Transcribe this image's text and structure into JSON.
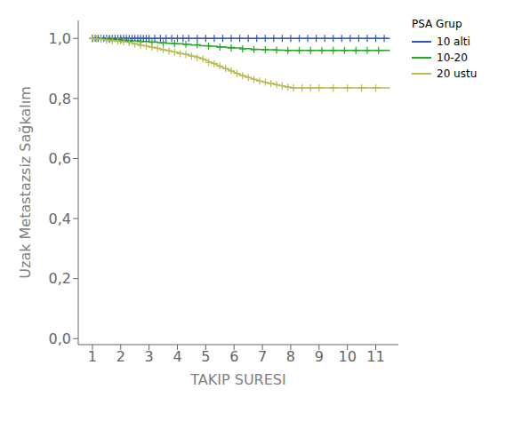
{
  "chart_data": {
    "type": "line",
    "title": "",
    "xlabel": "TAKIP SURESI",
    "ylabel": "Uzak Metastazsiz Sağkalım",
    "legend_title": "PSA Grup",
    "legend": "right",
    "grid": false,
    "xlim": [
      0.5,
      11.8
    ],
    "ylim": [
      -0.02,
      1.06
    ],
    "xticks": [
      1,
      2,
      3,
      4,
      5,
      6,
      7,
      8,
      9,
      10,
      11
    ],
    "yticks": [
      {
        "value": 0.0,
        "label": "0,0"
      },
      {
        "value": 0.2,
        "label": "0,2"
      },
      {
        "value": 0.4,
        "label": "0,4"
      },
      {
        "value": 0.6,
        "label": "0,6"
      },
      {
        "value": 0.8,
        "label": "0,8"
      },
      {
        "value": 1.0,
        "label": "1,0"
      }
    ],
    "series": [
      {
        "name": "10 alti",
        "color": "#3355bb",
        "type": "line",
        "line_style": "step",
        "x": [
          1.0,
          1.05,
          1.1,
          1.15,
          1.2,
          1.25,
          1.3,
          1.35,
          1.4,
          1.45,
          1.5,
          1.6,
          1.7,
          1.8,
          1.9,
          2.0,
          2.1,
          2.2,
          2.3,
          2.4,
          2.5,
          2.6,
          2.7,
          2.8,
          2.9,
          3.0,
          3.2,
          3.4,
          3.6,
          3.8,
          4.0,
          4.2,
          4.4,
          4.6,
          4.8,
          5.0,
          5.2,
          5.4,
          5.6,
          5.8,
          6.0,
          6.2,
          6.4,
          6.6,
          6.8,
          7.0,
          7.2,
          7.4,
          7.6,
          7.8,
          8.0,
          8.2,
          8.4,
          8.6,
          8.8,
          9.0,
          9.2,
          9.4,
          9.6,
          9.8,
          10.0,
          10.2,
          10.4,
          10.6,
          10.8,
          11.0,
          11.2,
          11.5
        ],
        "values": [
          1.0,
          1.0,
          1.0,
          1.0,
          1.0,
          1.0,
          1.0,
          1.0,
          1.0,
          1.0,
          1.0,
          1.0,
          1.0,
          1.0,
          1.0,
          1.0,
          1.0,
          1.0,
          1.0,
          1.0,
          1.0,
          1.0,
          1.0,
          1.0,
          1.0,
          1.0,
          1.0,
          1.0,
          1.0,
          1.0,
          1.0,
          1.0,
          1.0,
          1.0,
          1.0,
          1.0,
          1.0,
          1.0,
          1.0,
          1.0,
          1.0,
          1.0,
          1.0,
          1.0,
          1.0,
          1.0,
          1.0,
          1.0,
          1.0,
          1.0,
          1.0,
          1.0,
          1.0,
          1.0,
          1.0,
          1.0,
          1.0,
          1.0,
          1.0,
          1.0,
          1.0,
          1.0,
          1.0,
          1.0,
          1.0,
          1.0,
          1.0,
          1.0
        ]
      },
      {
        "color": "#3355bb",
        "type": "scatter",
        "marker": "plus",
        "x": [
          1.0,
          1.1,
          1.2,
          1.3,
          1.4,
          1.5,
          1.6,
          1.7,
          1.8,
          1.9,
          2.0,
          2.1,
          2.2,
          2.3,
          2.4,
          2.5,
          2.6,
          2.7,
          2.8,
          2.9,
          3.0,
          3.2,
          3.4,
          3.6,
          3.8,
          4.0,
          4.2,
          4.4,
          4.7,
          5.0,
          5.3,
          5.6,
          5.9,
          6.2,
          6.5,
          6.8,
          7.1,
          7.4,
          7.7,
          8.0,
          8.3,
          8.6,
          8.9,
          9.2,
          9.5,
          9.8,
          10.1,
          10.4,
          10.7,
          11.0,
          11.3
        ],
        "values": [
          1.0,
          1.0,
          1.0,
          1.0,
          1.0,
          1.0,
          1.0,
          1.0,
          1.0,
          1.0,
          1.0,
          1.0,
          1.0,
          1.0,
          1.0,
          1.0,
          1.0,
          1.0,
          1.0,
          1.0,
          1.0,
          1.0,
          1.0,
          1.0,
          1.0,
          1.0,
          1.0,
          1.0,
          1.0,
          1.0,
          1.0,
          1.0,
          1.0,
          1.0,
          1.0,
          1.0,
          1.0,
          1.0,
          1.0,
          1.0,
          1.0,
          1.0,
          1.0,
          1.0,
          1.0,
          1.0,
          1.0,
          1.0,
          1.0,
          1.0,
          1.0
        ]
      },
      {
        "name": "10-20",
        "color": "#22aa22",
        "type": "line",
        "line_style": "step",
        "x": [
          1.0,
          1.2,
          1.5,
          1.8,
          2.1,
          2.4,
          2.7,
          3.0,
          3.3,
          3.6,
          3.9,
          4.2,
          4.5,
          4.8,
          5.1,
          5.4,
          5.7,
          6.0,
          6.3,
          6.6,
          6.9,
          7.2,
          7.5,
          7.8,
          8.1,
          8.4,
          8.7,
          9.0,
          9.3,
          9.6,
          9.9,
          10.2,
          10.5,
          10.8,
          11.1,
          11.5
        ],
        "values": [
          1.0,
          1.0,
          0.998,
          0.996,
          0.994,
          0.992,
          0.99,
          0.988,
          0.986,
          0.984,
          0.982,
          0.98,
          0.978,
          0.976,
          0.974,
          0.972,
          0.97,
          0.968,
          0.966,
          0.964,
          0.963,
          0.962,
          0.961,
          0.96,
          0.96,
          0.96,
          0.96,
          0.96,
          0.96,
          0.96,
          0.96,
          0.96,
          0.96,
          0.96,
          0.96,
          0.96
        ]
      },
      {
        "color": "#22aa22",
        "type": "scatter",
        "marker": "plus",
        "x": [
          1.0,
          1.3,
          1.6,
          2.0,
          2.3,
          2.7,
          3.1,
          3.5,
          3.9,
          4.3,
          4.7,
          5.1,
          5.5,
          5.9,
          6.3,
          6.7,
          7.1,
          7.5,
          7.9,
          8.3,
          8.7,
          9.1,
          9.5,
          9.9,
          10.3,
          10.7,
          11.1
        ],
        "values": [
          1.0,
          1.0,
          0.997,
          0.994,
          0.991,
          0.989,
          0.987,
          0.985,
          0.983,
          0.981,
          0.979,
          0.975,
          0.971,
          0.968,
          0.965,
          0.963,
          0.962,
          0.961,
          0.96,
          0.96,
          0.96,
          0.96,
          0.96,
          0.96,
          0.96,
          0.96,
          0.96
        ]
      },
      {
        "name": "20 ustu",
        "color": "#bbbb55",
        "type": "line",
        "line_style": "step",
        "x": [
          1.0,
          1.1,
          1.2,
          1.3,
          1.4,
          1.5,
          1.6,
          1.7,
          1.8,
          1.9,
          2.0,
          2.1,
          2.2,
          2.3,
          2.4,
          2.5,
          2.6,
          2.7,
          2.8,
          2.9,
          3.0,
          3.1,
          3.2,
          3.3,
          3.4,
          3.5,
          3.6,
          3.7,
          3.8,
          3.9,
          4.0,
          4.1,
          4.2,
          4.3,
          4.4,
          4.5,
          4.6,
          4.7,
          4.8,
          4.9,
          5.0,
          5.1,
          5.2,
          5.3,
          5.4,
          5.5,
          5.6,
          5.7,
          5.8,
          5.9,
          6.0,
          6.1,
          6.2,
          6.3,
          6.4,
          6.5,
          6.6,
          6.7,
          6.8,
          6.9,
          7.0,
          7.1,
          7.2,
          7.3,
          7.4,
          7.5,
          7.6,
          7.7,
          7.8,
          7.9,
          8.0,
          8.2,
          8.5,
          8.8,
          9.0,
          9.5,
          10.0,
          10.5,
          11.0,
          11.5
        ],
        "values": [
          1.0,
          0.999,
          0.998,
          0.997,
          0.996,
          0.995,
          0.994,
          0.993,
          0.992,
          0.991,
          0.99,
          0.989,
          0.988,
          0.986,
          0.984,
          0.982,
          0.98,
          0.978,
          0.976,
          0.974,
          0.972,
          0.97,
          0.968,
          0.966,
          0.964,
          0.962,
          0.96,
          0.958,
          0.956,
          0.954,
          0.952,
          0.95,
          0.948,
          0.946,
          0.944,
          0.942,
          0.94,
          0.937,
          0.934,
          0.93,
          0.926,
          0.922,
          0.918,
          0.914,
          0.91,
          0.906,
          0.902,
          0.898,
          0.894,
          0.89,
          0.886,
          0.882,
          0.878,
          0.875,
          0.872,
          0.869,
          0.866,
          0.863,
          0.86,
          0.857,
          0.855,
          0.853,
          0.851,
          0.849,
          0.847,
          0.845,
          0.843,
          0.841,
          0.839,
          0.837,
          0.835,
          0.835,
          0.835,
          0.835,
          0.835,
          0.835,
          0.835,
          0.835,
          0.835,
          0.835
        ]
      },
      {
        "color": "#bbbb55",
        "type": "scatter",
        "marker": "plus",
        "x": [
          1.0,
          1.15,
          1.3,
          1.5,
          1.7,
          1.9,
          2.1,
          2.3,
          2.5,
          2.7,
          2.9,
          3.1,
          3.3,
          3.5,
          3.7,
          3.9,
          4.1,
          4.3,
          4.5,
          4.7,
          4.9,
          5.1,
          5.3,
          5.5,
          5.7,
          5.9,
          6.1,
          6.3,
          6.5,
          6.7,
          6.9,
          7.1,
          7.3,
          7.5,
          7.7,
          7.9,
          8.1,
          8.4,
          8.7,
          9.0,
          9.5,
          10.0,
          10.5,
          11.0
        ],
        "values": [
          1.0,
          0.9985,
          0.997,
          0.995,
          0.993,
          0.991,
          0.989,
          0.987,
          0.981,
          0.977,
          0.975,
          0.971,
          0.967,
          0.962,
          0.959,
          0.955,
          0.949,
          0.947,
          0.941,
          0.936,
          0.932,
          0.92,
          0.916,
          0.908,
          0.9,
          0.892,
          0.884,
          0.876,
          0.87,
          0.864,
          0.858,
          0.854,
          0.85,
          0.846,
          0.842,
          0.838,
          0.835,
          0.835,
          0.835,
          0.835,
          0.835,
          0.835,
          0.835,
          0.835
        ]
      }
    ]
  }
}
